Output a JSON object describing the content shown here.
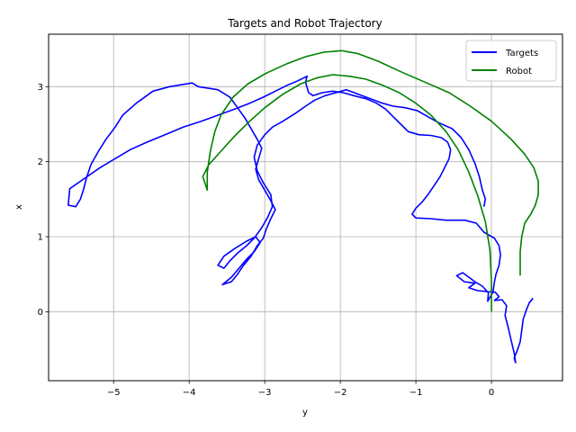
{
  "chart_data": {
    "type": "line",
    "title": "Targets and Robot Trajectory",
    "xlabel": "y",
    "ylabel": "x",
    "xlim": [
      -5.86,
      0.94
    ],
    "ylim": [
      -0.92,
      3.7
    ],
    "xticks": [
      -5,
      -4,
      -3,
      -2,
      -1,
      0
    ],
    "yticks": [
      0,
      1,
      2,
      3
    ],
    "grid": true,
    "legend_position": "top-right",
    "series": [
      {
        "name": "Targets",
        "color": "#0000ff",
        "points": [
          [
            0.55,
            0.18
          ],
          [
            0.5,
            0.12
          ],
          [
            0.46,
            0.02
          ],
          [
            0.42,
            -0.1
          ],
          [
            0.4,
            -0.25
          ],
          [
            0.38,
            -0.4
          ],
          [
            0.34,
            -0.52
          ],
          [
            0.3,
            -0.62
          ],
          [
            0.32,
            -0.68
          ],
          [
            0.3,
            -0.55
          ],
          [
            0.26,
            -0.38
          ],
          [
            0.22,
            -0.2
          ],
          [
            0.18,
            -0.05
          ],
          [
            0.2,
            0.08
          ],
          [
            0.14,
            0.16
          ],
          [
            0.04,
            0.15
          ],
          [
            0.1,
            0.2
          ],
          [
            0.05,
            0.26
          ],
          [
            -0.18,
            0.28
          ],
          [
            -0.3,
            0.32
          ],
          [
            -0.22,
            0.38
          ],
          [
            -0.36,
            0.4
          ],
          [
            -0.46,
            0.48
          ],
          [
            -0.38,
            0.52
          ],
          [
            -0.22,
            0.4
          ],
          [
            -0.12,
            0.34
          ],
          [
            -0.04,
            0.25
          ],
          [
            -0.05,
            0.14
          ],
          [
            0.02,
            0.26
          ],
          [
            0.04,
            0.4
          ],
          [
            0.06,
            0.5
          ],
          [
            0.1,
            0.62
          ],
          [
            0.12,
            0.76
          ],
          [
            0.1,
            0.88
          ],
          [
            0.04,
            0.98
          ],
          [
            -0.1,
            1.06
          ],
          [
            -0.2,
            1.18
          ],
          [
            -0.35,
            1.22
          ],
          [
            -0.6,
            1.22
          ],
          [
            -0.8,
            1.24
          ],
          [
            -1.0,
            1.25
          ],
          [
            -1.05,
            1.3
          ],
          [
            -1.0,
            1.38
          ],
          [
            -0.92,
            1.46
          ],
          [
            -0.84,
            1.56
          ],
          [
            -0.76,
            1.68
          ],
          [
            -0.68,
            1.8
          ],
          [
            -0.62,
            1.92
          ],
          [
            -0.56,
            2.04
          ],
          [
            -0.54,
            2.16
          ],
          [
            -0.58,
            2.26
          ],
          [
            -0.66,
            2.32
          ],
          [
            -0.8,
            2.35
          ],
          [
            -0.96,
            2.36
          ],
          [
            -1.1,
            2.4
          ],
          [
            -1.2,
            2.5
          ],
          [
            -1.3,
            2.6
          ],
          [
            -1.4,
            2.7
          ],
          [
            -1.52,
            2.78
          ],
          [
            -1.66,
            2.84
          ],
          [
            -1.82,
            2.88
          ],
          [
            -1.96,
            2.92
          ],
          [
            -2.1,
            2.94
          ],
          [
            -2.24,
            2.92
          ],
          [
            -2.36,
            2.88
          ],
          [
            -2.42,
            2.92
          ],
          [
            -2.46,
            3.06
          ],
          [
            -2.44,
            3.14
          ],
          [
            -2.56,
            3.08
          ],
          [
            -2.7,
            3.02
          ],
          [
            -2.86,
            2.94
          ],
          [
            -3.02,
            2.86
          ],
          [
            -3.2,
            2.78
          ],
          [
            -3.4,
            2.7
          ],
          [
            -3.62,
            2.62
          ],
          [
            -3.84,
            2.54
          ],
          [
            -4.08,
            2.46
          ],
          [
            -4.32,
            2.36
          ],
          [
            -4.56,
            2.26
          ],
          [
            -4.78,
            2.16
          ],
          [
            -4.98,
            2.04
          ],
          [
            -5.18,
            1.92
          ],
          [
            -5.38,
            1.78
          ],
          [
            -5.58,
            1.64
          ],
          [
            -5.6,
            1.42
          ],
          [
            -5.5,
            1.4
          ],
          [
            -5.44,
            1.5
          ],
          [
            -5.4,
            1.62
          ],
          [
            -5.36,
            1.78
          ],
          [
            -5.3,
            1.96
          ],
          [
            -5.2,
            2.14
          ],
          [
            -5.1,
            2.3
          ],
          [
            -4.98,
            2.46
          ],
          [
            -4.88,
            2.62
          ],
          [
            -4.7,
            2.78
          ],
          [
            -4.48,
            2.94
          ],
          [
            -4.26,
            3.0
          ],
          [
            -3.96,
            3.05
          ],
          [
            -3.88,
            3.0
          ],
          [
            -3.62,
            2.96
          ],
          [
            -3.46,
            2.86
          ],
          [
            -3.36,
            2.72
          ],
          [
            -3.26,
            2.58
          ],
          [
            -3.18,
            2.44
          ],
          [
            -3.1,
            2.3
          ],
          [
            -3.04,
            2.18
          ],
          [
            -3.08,
            2.04
          ],
          [
            -3.12,
            1.9
          ],
          [
            -3.08,
            1.76
          ],
          [
            -3.0,
            1.62
          ],
          [
            -2.92,
            1.48
          ],
          [
            -2.86,
            1.36
          ],
          [
            -2.92,
            1.24
          ],
          [
            -2.98,
            1.1
          ],
          [
            -3.02,
            0.98
          ],
          [
            -3.1,
            0.88
          ],
          [
            -3.18,
            0.74
          ],
          [
            -3.28,
            0.62
          ],
          [
            -3.36,
            0.5
          ],
          [
            -3.44,
            0.4
          ],
          [
            -3.56,
            0.36
          ],
          [
            -3.44,
            0.46
          ],
          [
            -3.34,
            0.58
          ],
          [
            -3.24,
            0.7
          ],
          [
            -3.14,
            0.8
          ],
          [
            -3.06,
            0.92
          ],
          [
            -3.12,
            1.0
          ],
          [
            -3.24,
            0.94
          ],
          [
            -3.4,
            0.84
          ],
          [
            -3.54,
            0.74
          ],
          [
            -3.62,
            0.62
          ],
          [
            -3.54,
            0.58
          ],
          [
            -3.46,
            0.68
          ],
          [
            -3.36,
            0.78
          ],
          [
            -3.24,
            0.88
          ],
          [
            -3.14,
            0.98
          ],
          [
            -3.04,
            1.12
          ],
          [
            -2.96,
            1.26
          ],
          [
            -2.9,
            1.4
          ],
          [
            -2.92,
            1.56
          ],
          [
            -3.02,
            1.72
          ],
          [
            -3.1,
            1.88
          ],
          [
            -3.14,
            2.06
          ],
          [
            -3.1,
            2.22
          ],
          [
            -3.0,
            2.36
          ],
          [
            -2.9,
            2.46
          ],
          [
            -2.76,
            2.54
          ],
          [
            -2.6,
            2.64
          ],
          [
            -2.46,
            2.74
          ],
          [
            -2.34,
            2.82
          ],
          [
            -2.2,
            2.88
          ],
          [
            -2.06,
            2.92
          ],
          [
            -1.92,
            2.96
          ],
          [
            -1.76,
            2.9
          ],
          [
            -1.6,
            2.84
          ],
          [
            -1.44,
            2.78
          ],
          [
            -1.3,
            2.74
          ],
          [
            -1.14,
            2.72
          ],
          [
            -0.98,
            2.68
          ],
          [
            -0.84,
            2.6
          ],
          [
            -0.7,
            2.52
          ],
          [
            -0.52,
            2.44
          ],
          [
            -0.4,
            2.32
          ],
          [
            -0.3,
            2.16
          ],
          [
            -0.22,
            1.98
          ],
          [
            -0.16,
            1.8
          ],
          [
            -0.12,
            1.62
          ],
          [
            -0.08,
            1.5
          ],
          [
            -0.1,
            1.4
          ]
        ]
      },
      {
        "name": "Robot",
        "color": "#008000",
        "points": [
          [
            0.38,
            0.48
          ],
          [
            0.38,
            0.8
          ],
          [
            0.4,
            1.0
          ],
          [
            0.44,
            1.18
          ],
          [
            0.52,
            1.3
          ],
          [
            0.58,
            1.42
          ],
          [
            0.62,
            1.56
          ],
          [
            0.62,
            1.74
          ],
          [
            0.56,
            1.92
          ],
          [
            0.44,
            2.1
          ],
          [
            0.26,
            2.3
          ],
          [
            0.0,
            2.54
          ],
          [
            -0.28,
            2.74
          ],
          [
            -0.56,
            2.92
          ],
          [
            -0.88,
            3.06
          ],
          [
            -1.2,
            3.2
          ],
          [
            -1.5,
            3.34
          ],
          [
            -1.76,
            3.44
          ],
          [
            -1.98,
            3.48
          ],
          [
            -2.22,
            3.46
          ],
          [
            -2.46,
            3.4
          ],
          [
            -2.72,
            3.3
          ],
          [
            -2.98,
            3.18
          ],
          [
            -3.22,
            3.04
          ],
          [
            -3.42,
            2.86
          ],
          [
            -3.58,
            2.62
          ],
          [
            -3.66,
            2.4
          ],
          [
            -3.72,
            2.14
          ],
          [
            -3.76,
            1.86
          ],
          [
            -3.76,
            1.62
          ],
          [
            -3.82,
            1.8
          ],
          [
            -3.74,
            1.96
          ],
          [
            -3.58,
            2.14
          ],
          [
            -3.4,
            2.34
          ],
          [
            -3.2,
            2.54
          ],
          [
            -3.0,
            2.72
          ],
          [
            -2.76,
            2.9
          ],
          [
            -2.52,
            3.04
          ],
          [
            -2.3,
            3.12
          ],
          [
            -2.1,
            3.16
          ],
          [
            -1.88,
            3.14
          ],
          [
            -1.66,
            3.1
          ],
          [
            -1.44,
            3.02
          ],
          [
            -1.22,
            2.92
          ],
          [
            -1.0,
            2.78
          ],
          [
            -0.8,
            2.62
          ],
          [
            -0.6,
            2.4
          ],
          [
            -0.44,
            2.16
          ],
          [
            -0.3,
            1.86
          ],
          [
            -0.18,
            1.54
          ],
          [
            -0.08,
            1.2
          ],
          [
            -0.02,
            0.82
          ],
          [
            0.0,
            0.4
          ],
          [
            0.0,
            0.0
          ]
        ]
      }
    ]
  }
}
